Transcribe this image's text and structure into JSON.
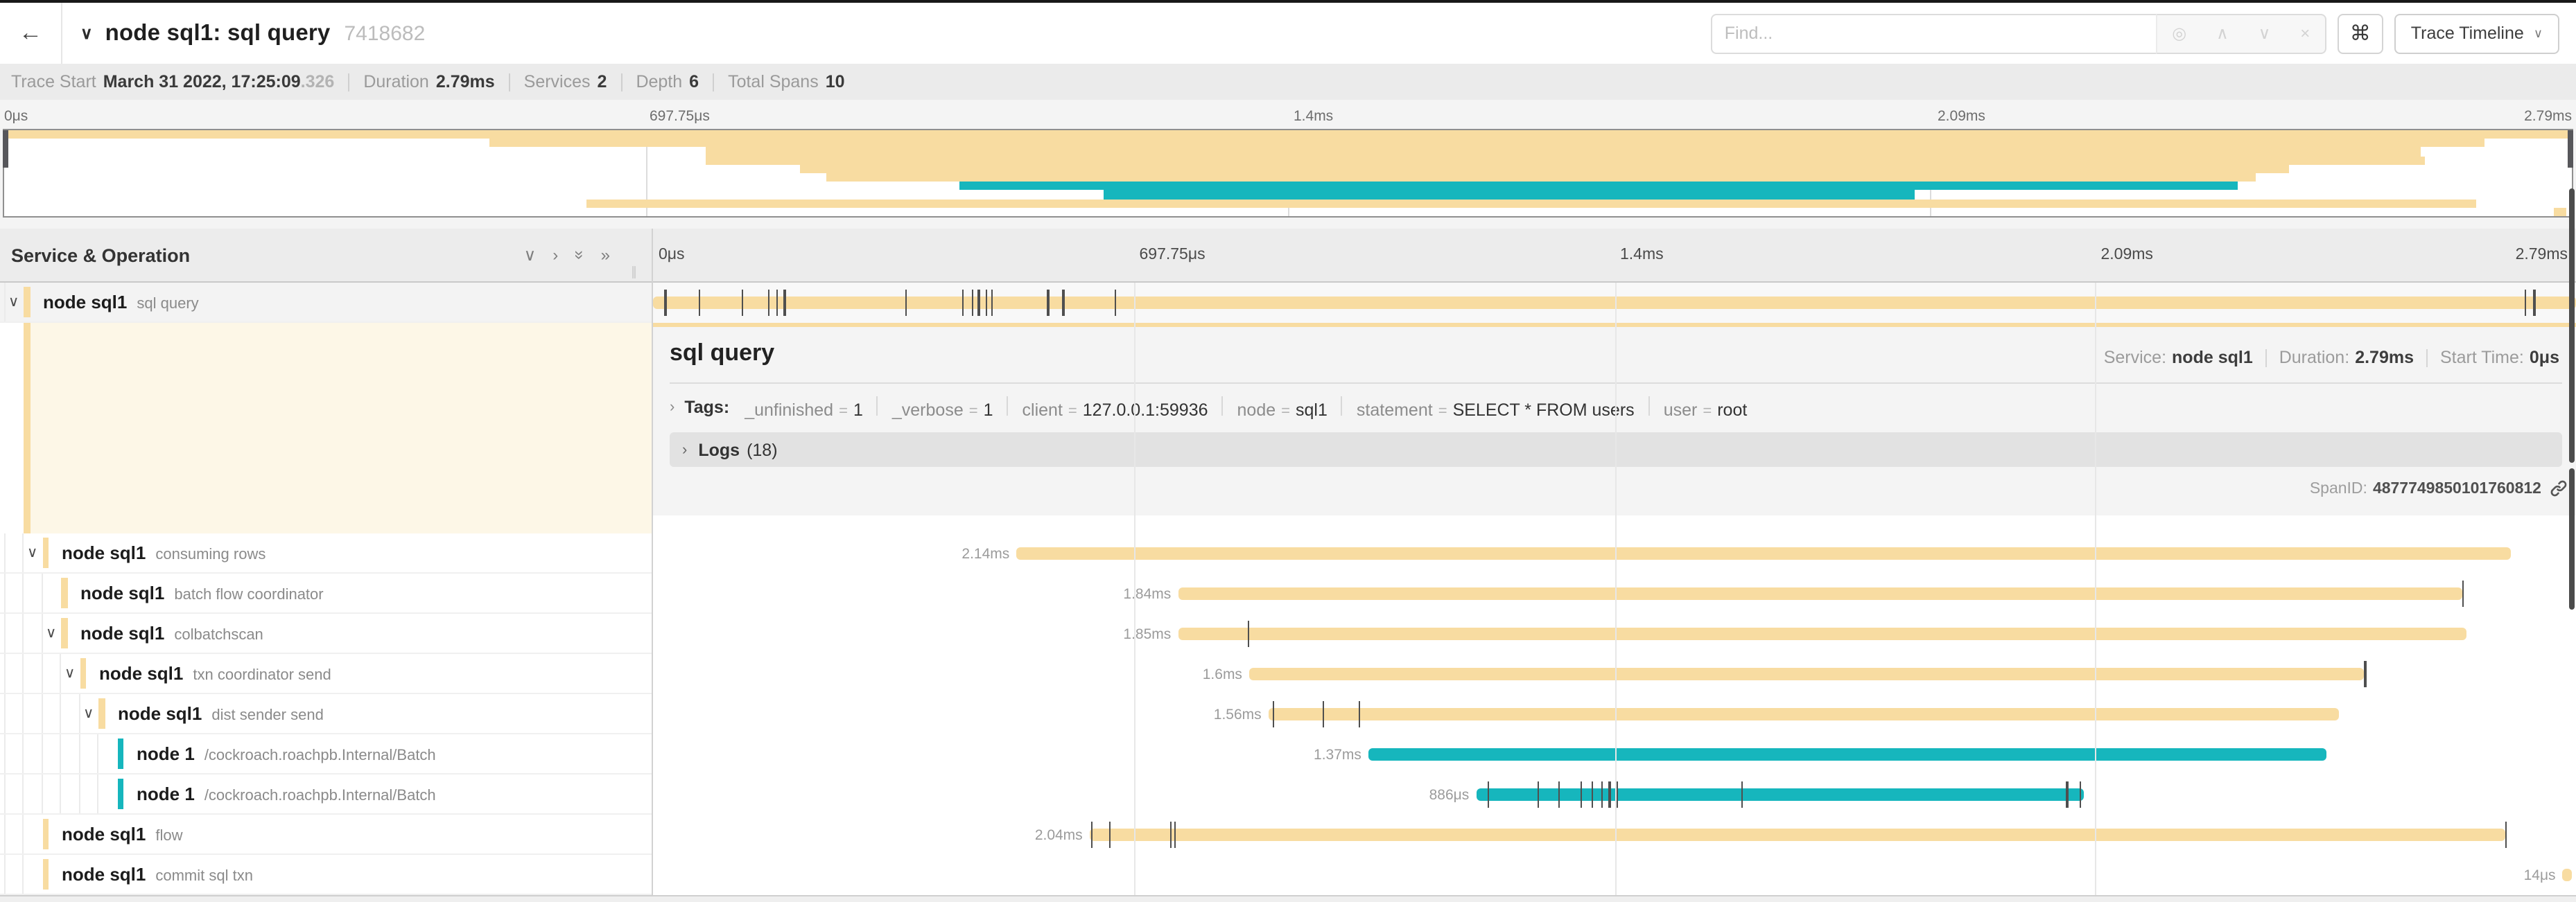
{
  "header": {
    "back_icon": "←",
    "collapse_icon": "∨",
    "title": "node sql1: sql query",
    "trace_id": "7418682",
    "find": {
      "placeholder": "Find...",
      "icons": [
        "target",
        "prev-up",
        "next-down",
        "clear-x"
      ],
      "icon_glyphs": [
        "◎",
        "∧",
        "∨",
        "×"
      ]
    },
    "shortcut_button": "⌘",
    "view_selector": "Trace Timeline",
    "view_caret": "∨"
  },
  "summary": {
    "items": [
      {
        "label": "Trace Start",
        "value": "March 31 2022, 17:25:09",
        "suffix": ".326"
      },
      {
        "label": "Duration",
        "value": "2.79ms"
      },
      {
        "label": "Services",
        "value": "2"
      },
      {
        "label": "Depth",
        "value": "6"
      },
      {
        "label": "Total Spans",
        "value": "10"
      }
    ]
  },
  "timeline": {
    "ticks": [
      "0μs",
      "697.75μs",
      "1.4ms",
      "2.09ms",
      "2.79ms"
    ],
    "tick_positions_pct": [
      0,
      25,
      50,
      75,
      100
    ]
  },
  "tree_header": {
    "title": "Service & Operation",
    "icons": [
      "collapse-one",
      "expand-one",
      "collapse-all",
      "expand-all"
    ],
    "icon_glyphs": [
      "∨",
      "›",
      "»",
      "»"
    ],
    "grip": "∥"
  },
  "colors": {
    "tan": "#f8dca1",
    "teal": "#16b6bd",
    "selected_row_bg": "#f8f8f8",
    "selected_tree_bg": "#f3f3f3"
  },
  "spans": [
    {
      "service": "node sql1",
      "operation": "sql query",
      "depth": 0,
      "has_children": true,
      "color": "tan",
      "start_pct": 0,
      "width_pct": 100,
      "duration_label": "",
      "ticks_pct": [
        0.6,
        2.4,
        4.6,
        6.0,
        6.4,
        6.8,
        13.1,
        16.1,
        16.6,
        16.9,
        17.3,
        17.6,
        20.5,
        21.3,
        24.0,
        97.3,
        97.8
      ],
      "selected": true
    },
    {
      "service": "node sql1",
      "operation": "consuming rows",
      "depth": 1,
      "has_children": true,
      "color": "tan",
      "start_pct": 18.9,
      "width_pct": 77.7,
      "duration_label": "2.14ms",
      "ticks_pct": [],
      "selected": false
    },
    {
      "service": "node sql1",
      "operation": "batch flow coordinator",
      "depth": 2,
      "has_children": false,
      "color": "tan",
      "start_pct": 27.3,
      "width_pct": 66.8,
      "duration_label": "1.84ms",
      "ticks_pct": [
        94.1
      ],
      "selected": false
    },
    {
      "service": "node sql1",
      "operation": "colbatchscan",
      "depth": 2,
      "has_children": true,
      "color": "tan",
      "start_pct": 27.3,
      "width_pct": 67.0,
      "duration_label": "1.85ms",
      "ticks_pct": [
        30.9
      ],
      "selected": false
    },
    {
      "service": "node sql1",
      "operation": "txn coordinator send",
      "depth": 3,
      "has_children": true,
      "color": "tan",
      "start_pct": 31.0,
      "width_pct": 58.0,
      "duration_label": "1.6ms",
      "ticks_pct": [
        89.0
      ],
      "selected": false
    },
    {
      "service": "node sql1",
      "operation": "dist sender send",
      "depth": 4,
      "has_children": true,
      "color": "tan",
      "start_pct": 32.0,
      "width_pct": 55.7,
      "duration_label": "1.56ms",
      "ticks_pct": [
        32.2,
        34.8,
        36.7
      ],
      "selected": false
    },
    {
      "service": "node 1",
      "operation": "/cockroach.roachpb.Internal/Batch",
      "depth": 5,
      "has_children": false,
      "color": "teal",
      "start_pct": 37.2,
      "width_pct": 49.8,
      "duration_label": "1.37ms",
      "ticks_pct": [],
      "selected": false
    },
    {
      "service": "node 1",
      "operation": "/cockroach.roachpb.Internal/Batch",
      "depth": 5,
      "has_children": false,
      "color": "teal",
      "start_pct": 42.8,
      "width_pct": 31.6,
      "duration_label": "886μs",
      "ticks_pct": [
        43.4,
        46.0,
        47.1,
        48.2,
        48.8,
        49.3,
        49.7,
        50.1,
        56.6,
        73.5,
        74.2
      ],
      "selected": false
    },
    {
      "service": "node sql1",
      "operation": "flow",
      "depth": 1,
      "has_children": false,
      "color": "tan",
      "start_pct": 22.7,
      "width_pct": 73.6,
      "duration_label": "2.04ms",
      "ticks_pct": [
        22.8,
        23.7,
        26.9,
        27.1,
        96.3
      ],
      "selected": false
    },
    {
      "service": "node sql1",
      "operation": "commit sql txn",
      "depth": 1,
      "has_children": false,
      "color": "tan",
      "start_pct": 99.3,
      "width_pct": 0.5,
      "duration_label": "14μs",
      "ticks_pct": [],
      "selected": false
    }
  ],
  "detail": {
    "title": "sql query",
    "service_label": "Service:",
    "service": "node sql1",
    "duration_label": "Duration:",
    "duration": "2.79ms",
    "start_label": "Start Time:",
    "start": "0μs",
    "tags_label": "Tags:",
    "tags": [
      {
        "key": "_unfinished",
        "value": "1"
      },
      {
        "key": "_verbose",
        "value": "1"
      },
      {
        "key": "client",
        "value": "127.0.0.1:59936"
      },
      {
        "key": "node",
        "value": "sql1"
      },
      {
        "key": "statement",
        "value": "SELECT * FROM users"
      },
      {
        "key": "user",
        "value": "root"
      }
    ],
    "logs_label": "Logs",
    "logs_count": "(18)",
    "spanid_label": "SpanID:",
    "spanid": "4877749850101760812"
  }
}
